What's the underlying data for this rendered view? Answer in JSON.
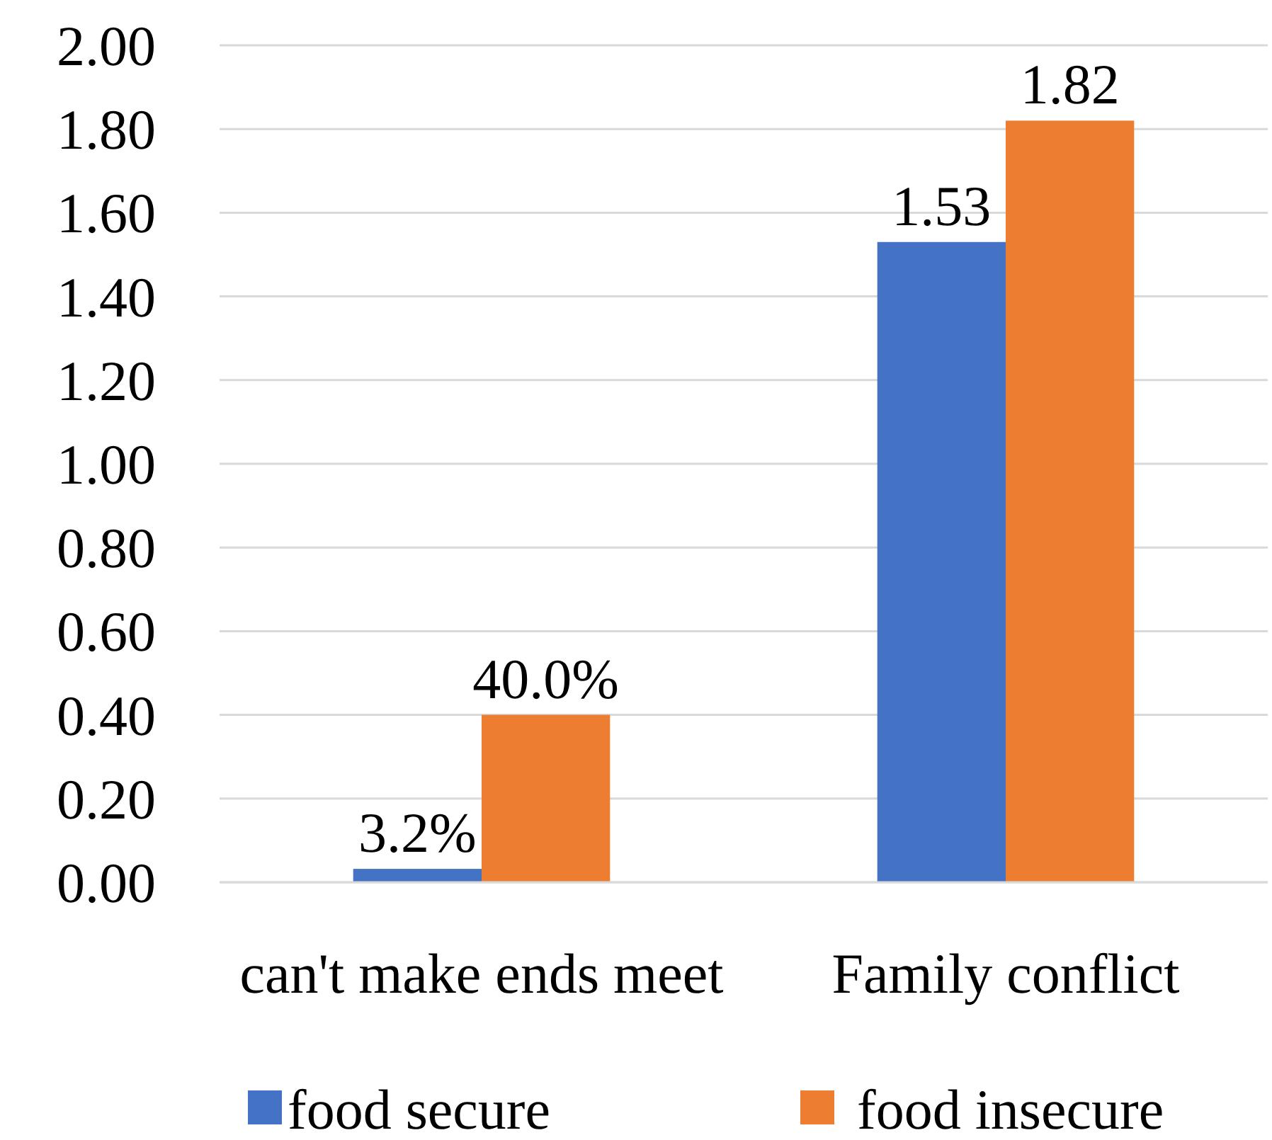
{
  "chart_data": {
    "type": "bar",
    "categories": [
      "can't make ends meet",
      "Family conflict"
    ],
    "series": [
      {
        "name": "food secure",
        "color": "#4472c4",
        "values": [
          0.032,
          1.53
        ],
        "value_labels": [
          "3.2%",
          "1.53"
        ]
      },
      {
        "name": "food insecure",
        "color": "#ed7d31",
        "values": [
          0.4,
          1.82
        ],
        "value_labels": [
          "40.0%",
          "1.82"
        ]
      }
    ],
    "ylim": [
      0,
      2
    ],
    "yticks": [
      "0.00",
      "0.20",
      "0.40",
      "0.60",
      "0.80",
      "1.00",
      "1.20",
      "1.40",
      "1.60",
      "1.80",
      "2.00"
    ],
    "grid": "y",
    "legend": "bottom"
  }
}
